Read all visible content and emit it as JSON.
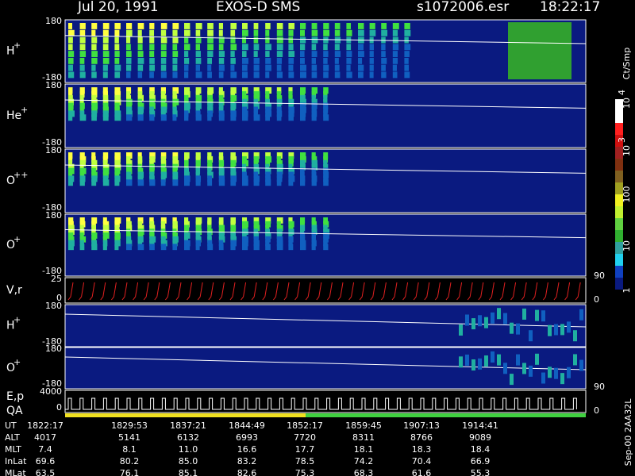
{
  "header": {
    "date": "Jul 20, 1991",
    "instrument": "EXOS-D SMS",
    "file": "s1072006.esr",
    "time": "18:22:17"
  },
  "panels": [
    {
      "label": "H",
      "sup": "+",
      "ticks": [
        "180",
        "-180"
      ],
      "right": []
    },
    {
      "label": "He",
      "sup": "+",
      "ticks": [
        "180",
        "-180"
      ],
      "right": []
    },
    {
      "label": "O",
      "sup": "++",
      "ticks": [
        "180",
        "-180"
      ],
      "right": []
    },
    {
      "label": "O",
      "sup": "+",
      "ticks": [
        "180",
        "-180"
      ],
      "right": []
    },
    {
      "label": "V,r",
      "sup": "",
      "ticks": [
        "25",
        "0"
      ],
      "right": [
        "90",
        "0"
      ]
    },
    {
      "label": "H",
      "sup": "+",
      "ticks": [
        "180",
        "-180"
      ],
      "right": []
    },
    {
      "label": "O",
      "sup": "+",
      "ticks": [
        "180",
        "-180"
      ],
      "right": [
        "90"
      ]
    },
    {
      "label": "E,p",
      "sup": "",
      "label2": "QA",
      "ticks": [
        "4000",
        "0"
      ],
      "right": [
        "0"
      ]
    }
  ],
  "colorbar": {
    "unit": "Ct/Smp",
    "labels": [
      {
        "base": "10",
        "exp": "4"
      },
      {
        "base": "10",
        "exp": "3"
      },
      {
        "base": "100",
        "exp": ""
      },
      {
        "base": "10",
        "exp": ""
      },
      {
        "base": "1",
        "exp": ""
      }
    ]
  },
  "table": {
    "rows": [
      {
        "name": "UT",
        "values": [
          "1822:17",
          "1829:53",
          "1837:21",
          "1844:49",
          "1852:17",
          "1859:45",
          "1907:13",
          "1914:41"
        ]
      },
      {
        "name": "ALT",
        "values": [
          "4017",
          "5141",
          "6132",
          "6993",
          "7720",
          "8311",
          "8766",
          "9089"
        ]
      },
      {
        "name": "MLT",
        "values": [
          "7.4",
          "8.1",
          "11.0",
          "16.6",
          "17.7",
          "18.1",
          "18.3",
          "18.4"
        ]
      },
      {
        "name": "InLat",
        "values": [
          "69.6",
          "80.2",
          "85.0",
          "83.2",
          "78.5",
          "74.2",
          "70.4",
          "66.9"
        ]
      },
      {
        "name": "MLat",
        "values": [
          "63.5",
          "76.1",
          "85.1",
          "82.6",
          "75.3",
          "68.3",
          "61.6",
          "55.3"
        ]
      }
    ]
  },
  "footer": "Sep-00  2AA32L"
}
